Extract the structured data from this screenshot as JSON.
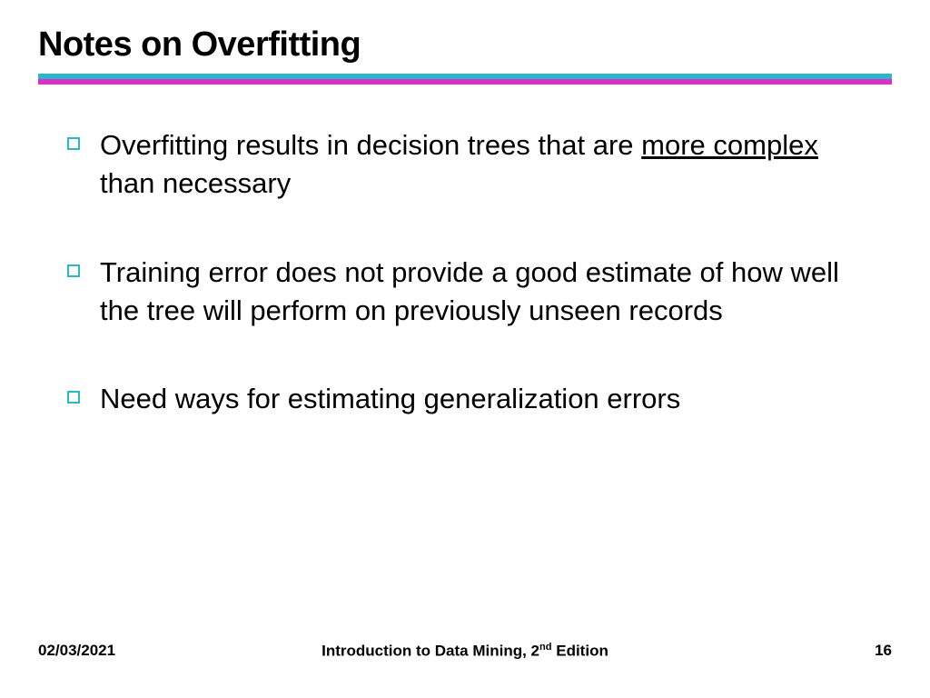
{
  "title": {
    "text": "Notes on Overfitting",
    "fontsize": 38,
    "color": "#000000"
  },
  "divider": {
    "top_color": "#29b8c8",
    "bottom_color": "#d830c8",
    "top_height": 6,
    "bottom_height": 6
  },
  "bullets": {
    "marker": {
      "border_color": "#29b8c8",
      "size": 14,
      "border_width": 2
    },
    "text_fontsize": 31,
    "text_color": "#000000",
    "items": [
      {
        "pre": "Overfitting results in decision trees that are ",
        "underlined": "more complex",
        "post": " than necessary"
      },
      {
        "pre": "Training error does not provide a good estimate of how well the tree will perform on previously unseen records",
        "underlined": "",
        "post": ""
      },
      {
        "pre": "Need ways for estimating generalization errors",
        "underlined": "",
        "post": ""
      }
    ]
  },
  "footer": {
    "date": "02/03/2021",
    "center_pre": "Introduction to Data Mining, 2",
    "center_sup": "nd",
    "center_post": " Edition",
    "page": "16",
    "fontsize": 17,
    "color": "#000000"
  }
}
